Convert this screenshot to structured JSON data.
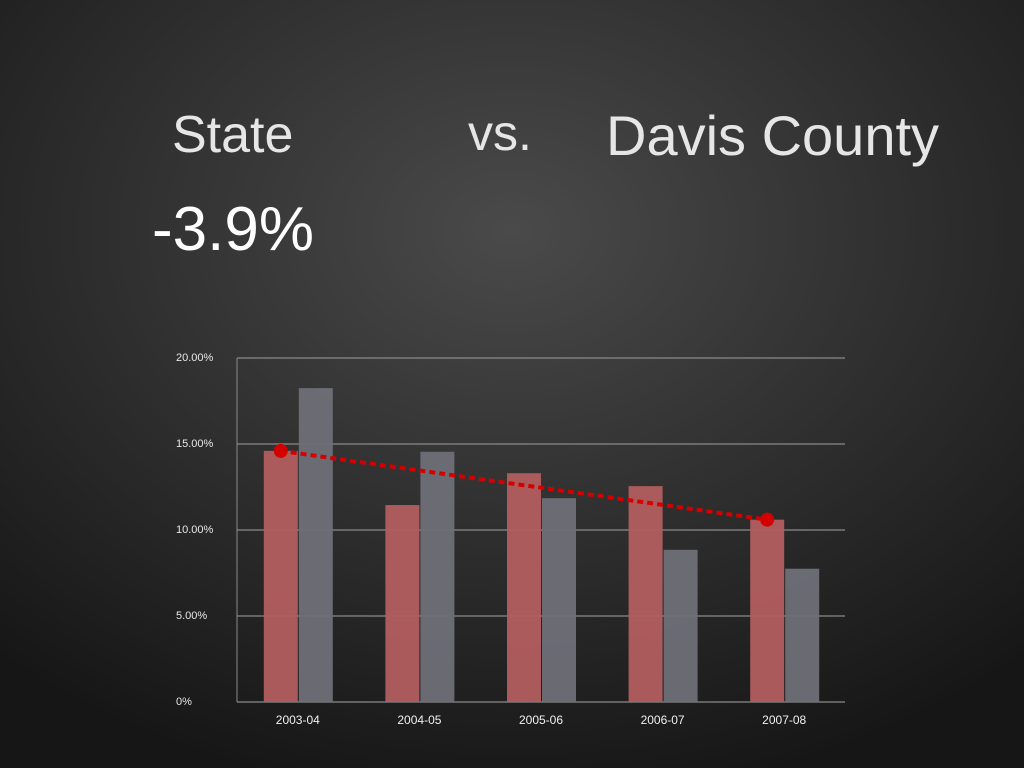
{
  "chart_data": {
    "type": "bar",
    "title": "State",
    "annotations": [
      "vs.",
      "Davis County",
      "-3.9%"
    ],
    "categories": [
      "2003-04",
      "2004-05",
      "2005-06",
      "2006-07",
      "2007-08"
    ],
    "series": [
      {
        "color": "#b35e60",
        "values": [
          14.6,
          11.45,
          13.3,
          12.55,
          10.6
        ]
      },
      {
        "color": "#6f6f78",
        "values": [
          18.25,
          14.55,
          11.85,
          8.85,
          7.75
        ]
      }
    ],
    "trend": {
      "x": [
        "2003-04",
        "2007-08"
      ],
      "values": [
        14.6,
        10.6
      ],
      "color": "#d40000",
      "dashed": true
    },
    "ylim": [
      0,
      20
    ],
    "yticks": [
      {
        "value": 0,
        "label": "0%"
      },
      {
        "value": 5,
        "label": "5.00%"
      },
      {
        "value": 10,
        "label": "10.00%"
      },
      {
        "value": 15,
        "label": "15.00%"
      },
      {
        "value": 20,
        "label": "20.00%"
      }
    ],
    "grid": true
  }
}
